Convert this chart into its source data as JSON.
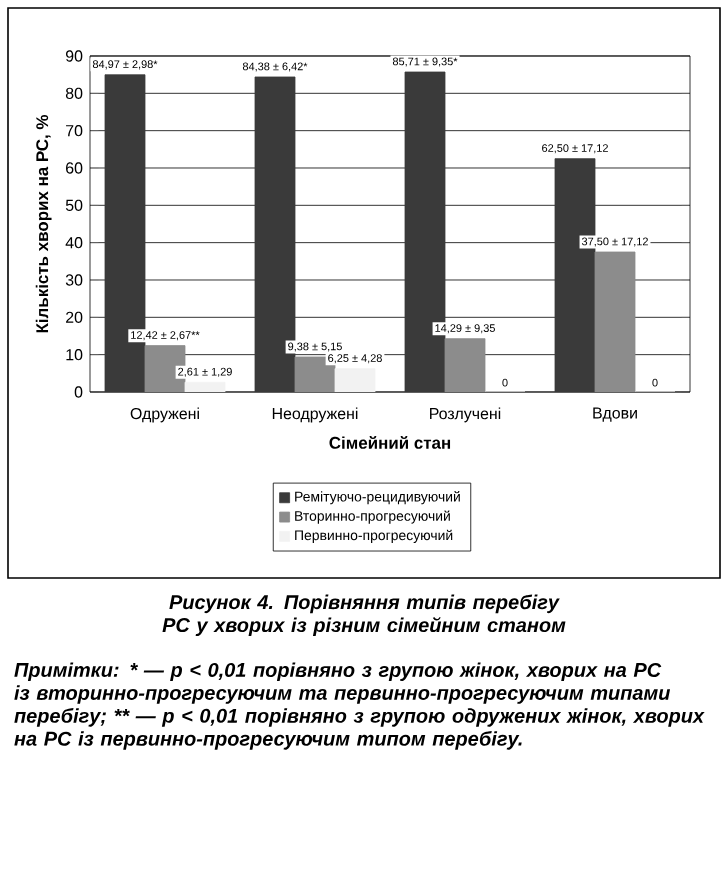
{
  "chart_data": {
    "type": "bar",
    "xlabel": "Сімейний стан",
    "ylabel": "Кількість хворих на РС, %",
    "categories": [
      "Одружені",
      "Неодружені",
      "Розлучені",
      "Вдови"
    ],
    "series": [
      {
        "name": "Ремітуючо-рецидивуючий",
        "color": "#3a3a3a",
        "values": [
          84.97,
          84.38,
          85.71,
          62.5
        ],
        "value_labels": [
          "84,97 ± 2,98*",
          "84,38 ± 6,42*",
          "85,71 ± 9,35*",
          "62,50 ± 17,12"
        ]
      },
      {
        "name": "Вторинно-прогресуючий",
        "color": "#8c8c8c",
        "values": [
          12.42,
          9.38,
          14.29,
          37.5
        ],
        "value_labels": [
          "12,42 ± 2,67**",
          "9,38 ± 5,15",
          "14,29 ± 9,35",
          "37,50 ± 17,12"
        ]
      },
      {
        "name": "Первинно-прогресуючий",
        "color": "#f2f2f2",
        "values": [
          2.61,
          6.25,
          0,
          0
        ],
        "value_labels": [
          "2,61 ± 1,29",
          "6,25 ± 4,28",
          "0",
          "0"
        ]
      }
    ],
    "ylim": [
      0,
      90
    ],
    "yticks": [
      0,
      10,
      20,
      30,
      40,
      50,
      60,
      70,
      80,
      90
    ],
    "grid": "y",
    "legend": "bottom",
    "annotations": [
      "Рисунок 4. Порівняння типів перебігу РС у хворих із різним сімейним станом",
      "Примітки: * — p < 0,01 порівняно з групою жінок, хворих на РС із вторинно-прогресуючим та первинно-прогресуючим типами перебігу; ** — p < 0,01 порівняно з групою одружених жінок, хворих на РС із первинно-прогресуючим типом перебігу."
    ]
  }
}
